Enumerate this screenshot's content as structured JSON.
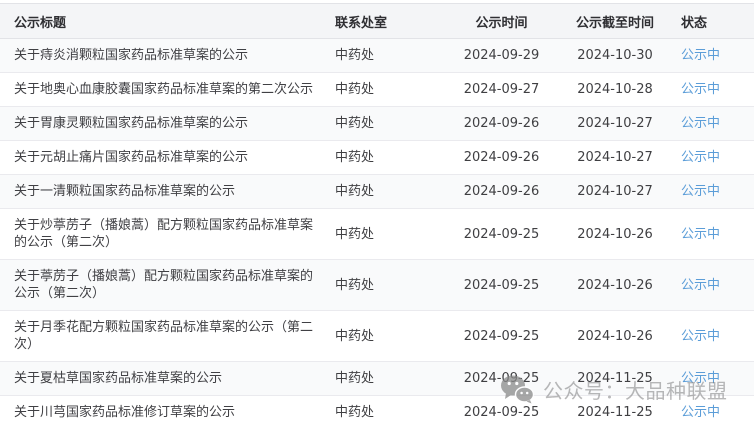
{
  "table": {
    "columns": [
      {
        "key": "title",
        "label": "公示标题"
      },
      {
        "key": "dept",
        "label": "联系处室"
      },
      {
        "key": "publish",
        "label": "公示时间"
      },
      {
        "key": "deadline",
        "label": "公示截至时间"
      },
      {
        "key": "status",
        "label": "状态"
      }
    ],
    "rows": [
      {
        "title": "关于痔炎消颗粒国家药品标准草案的公示",
        "dept": "中药处",
        "publish": "2024-09-29",
        "deadline": "2024-10-30",
        "status": "公示中"
      },
      {
        "title": "关于地奥心血康胶囊国家药品标准草案的第二次公示",
        "dept": "中药处",
        "publish": "2024-09-27",
        "deadline": "2024-10-28",
        "status": "公示中"
      },
      {
        "title": "关于胃康灵颗粒国家药品标准草案的公示",
        "dept": "中药处",
        "publish": "2024-09-26",
        "deadline": "2024-10-27",
        "status": "公示中"
      },
      {
        "title": "关于元胡止痛片国家药品标准草案的公示",
        "dept": "中药处",
        "publish": "2024-09-26",
        "deadline": "2024-10-27",
        "status": "公示中"
      },
      {
        "title": "关于一清颗粒国家药品标准草案的公示",
        "dept": "中药处",
        "publish": "2024-09-26",
        "deadline": "2024-10-27",
        "status": "公示中"
      },
      {
        "title": "关于炒葶苈子（播娘蒿）配方颗粒国家药品标准草案的公示（第二次）",
        "dept": "中药处",
        "publish": "2024-09-25",
        "deadline": "2024-10-26",
        "status": "公示中"
      },
      {
        "title": "关于葶苈子（播娘蒿）配方颗粒国家药品标准草案的公示（第二次）",
        "dept": "中药处",
        "publish": "2024-09-25",
        "deadline": "2024-10-26",
        "status": "公示中"
      },
      {
        "title": "关于月季花配方颗粒国家药品标准草案的公示（第二次）",
        "dept": "中药处",
        "publish": "2024-09-25",
        "deadline": "2024-10-26",
        "status": "公示中"
      },
      {
        "title": "关于夏枯草国家药品标准草案的公示",
        "dept": "中药处",
        "publish": "2024-09-25",
        "deadline": "2024-11-25",
        "status": "公示中"
      },
      {
        "title": "关于川芎国家药品标准修订草案的公示",
        "dept": "中药处",
        "publish": "2024-09-25",
        "deadline": "2024-11-25",
        "status": "公示中"
      }
    ]
  },
  "watermark": {
    "icon": "wechat-icon",
    "text": "公众号：大品种联盟"
  },
  "colors": {
    "status_link": "#5b9dd8",
    "header_bg": "#f4f5f7",
    "stripe_bg": "#f9fafb",
    "border": "#eaeaee",
    "border_strong": "#e2e3e7",
    "watermark_gray": "#8a8a8a"
  }
}
